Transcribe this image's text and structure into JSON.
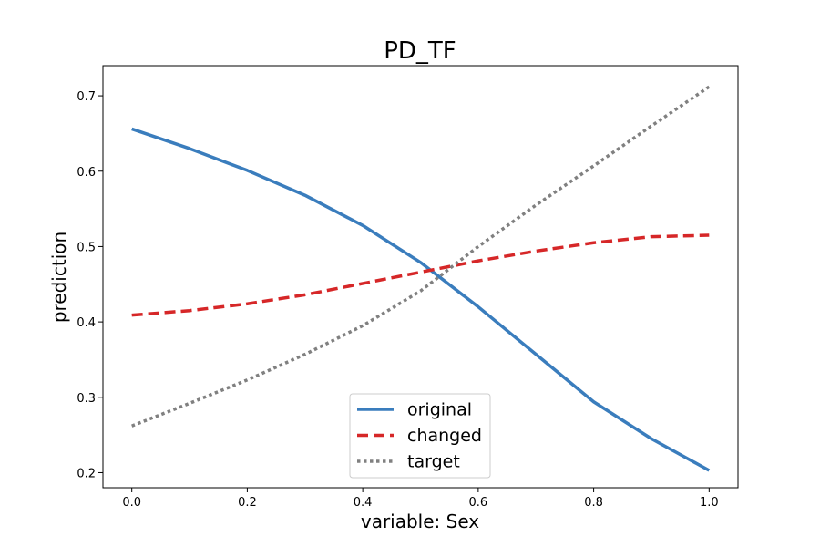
{
  "chart_data": {
    "type": "line",
    "title": "PD_TF",
    "xlabel": "variable: Sex",
    "ylabel": "prediction",
    "xlim": [
      -0.05,
      1.05
    ],
    "ylim": [
      0.18,
      0.74
    ],
    "xticks": [
      0.0,
      0.2,
      0.4,
      0.6,
      0.8,
      1.0
    ],
    "xtick_labels": [
      "0.0",
      "0.2",
      "0.4",
      "0.6",
      "0.8",
      "1.0"
    ],
    "yticks": [
      0.2,
      0.3,
      0.4,
      0.5,
      0.6,
      0.7
    ],
    "ytick_labels": [
      "0.2",
      "0.3",
      "0.4",
      "0.5",
      "0.6",
      "0.7"
    ],
    "grid": false,
    "legend_position": "bottom-center",
    "x": [
      0.0,
      0.1,
      0.2,
      0.3,
      0.4,
      0.5,
      0.6,
      0.7,
      0.8,
      0.9,
      1.0
    ],
    "series": [
      {
        "name": "original",
        "style": "solid",
        "color": "#3a7dbd",
        "values": [
          0.656,
          0.63,
          0.601,
          0.568,
          0.528,
          0.479,
          0.42,
          0.357,
          0.294,
          0.245,
          0.203
        ]
      },
      {
        "name": "changed",
        "style": "dashed",
        "color": "#d62728",
        "values": [
          0.409,
          0.415,
          0.424,
          0.436,
          0.451,
          0.466,
          0.481,
          0.494,
          0.505,
          0.513,
          0.515
        ]
      },
      {
        "name": "target",
        "style": "dotted",
        "color": "#808080",
        "values": [
          0.262,
          0.292,
          0.323,
          0.357,
          0.395,
          0.441,
          0.5,
          0.555,
          0.607,
          0.66,
          0.712
        ]
      }
    ]
  }
}
